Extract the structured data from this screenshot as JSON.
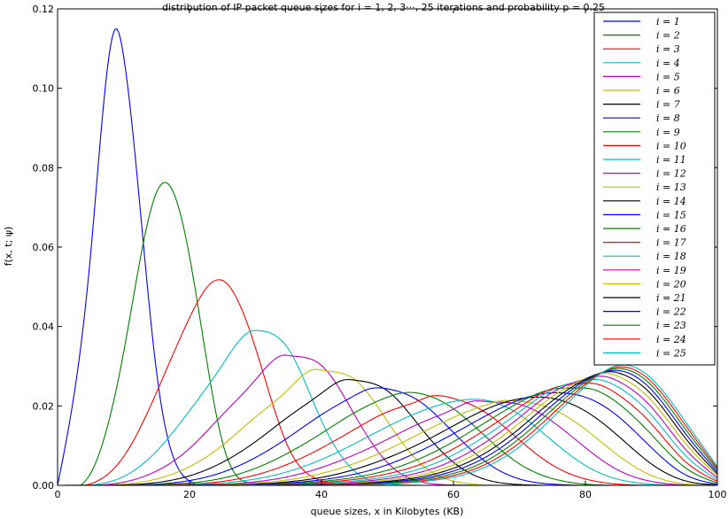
{
  "chart_data": {
    "type": "line",
    "title": "distribution of IP packet queue sizes  for i = 1, 2, 3···, 25 iterations and probability p = 0.25",
    "xlabel": "queue sizes, x in Kilobytes (KB)",
    "ylabel": "f(x, t; ψ)",
    "xlim": [
      0,
      100
    ],
    "ylim": [
      0,
      0.12
    ],
    "xticks": [
      "0",
      "20",
      "40",
      "60",
      "80",
      "100"
    ],
    "yticks": [
      "0.00",
      "0.02",
      "0.04",
      "0.06",
      "0.08",
      "0.10",
      "0.12"
    ],
    "grid": false,
    "legend_position": "top-right",
    "x": [
      0,
      5,
      10,
      15,
      20,
      25,
      30,
      35,
      40,
      45,
      50,
      55,
      60,
      65,
      70,
      75,
      80,
      85,
      90,
      95,
      100
    ],
    "series": [
      {
        "name": "i = 1",
        "color": "#0000ff",
        "peak_x": 8.9,
        "peak_y": 0.115,
        "values": [
          0,
          0.058,
          0.1082,
          0.0286,
          0.0011,
          0,
          0,
          0,
          0,
          0,
          0,
          0,
          0,
          0,
          0,
          0,
          0,
          0,
          0,
          0,
          0
        ]
      },
      {
        "name": "i = 2",
        "color": "#008000",
        "peak_x": 16.7,
        "peak_y": 0.076,
        "values": [
          0,
          0.003,
          0.0334,
          0.0738,
          0.0576,
          0.0108,
          0.0006,
          0,
          0,
          0,
          0,
          0,
          0,
          0,
          0,
          0,
          0,
          0,
          0,
          0,
          0
        ]
      },
      {
        "name": "i = 3",
        "color": "#ff0000",
        "peak_x": 24.4,
        "peak_y": 0.0518,
        "values": [
          0,
          0.0004,
          0.0072,
          0.0234,
          0.0422,
          0.0516,
          0.0346,
          0.0095,
          0.0012,
          0,
          0,
          0,
          0,
          0,
          0,
          0,
          0,
          0,
          0,
          0,
          0
        ]
      },
      {
        "name": "i = 4",
        "color": "#00bfbf",
        "peak_x": 29.8,
        "peak_y": 0.039,
        "values": [
          0,
          0.0001,
          0.0022,
          0.0086,
          0.0188,
          0.0304,
          0.039,
          0.0343,
          0.0163,
          0.0036,
          0.0004,
          0,
          0,
          0,
          0,
          0,
          0,
          0,
          0,
          0,
          0
        ]
      },
      {
        "name": "i = 5",
        "color": "#bf00bf",
        "peak_x": 34.5,
        "peak_y": 0.0328,
        "values": [
          0,
          0,
          0.0008,
          0.0036,
          0.0093,
          0.0178,
          0.0266,
          0.0327,
          0.0302,
          0.0178,
          0.0057,
          0.0009,
          0.0001,
          0,
          0,
          0,
          0,
          0,
          0,
          0,
          0
        ]
      },
      {
        "name": "i = 6",
        "color": "#bfbf00",
        "peak_x": 39.0,
        "peak_y": 0.0292,
        "values": [
          0,
          0,
          0.0003,
          0.0016,
          0.0047,
          0.0101,
          0.0172,
          0.0242,
          0.029,
          0.0267,
          0.0161,
          0.0055,
          0.0011,
          0.0001,
          0,
          0,
          0,
          0,
          0,
          0,
          0
        ]
      },
      {
        "name": "i = 7",
        "color": "#000000",
        "peak_x": 43.6,
        "peak_y": 0.0266,
        "values": [
          0,
          0,
          0.0001,
          0.0007,
          0.0024,
          0.0058,
          0.011,
          0.0173,
          0.0232,
          0.0265,
          0.0238,
          0.0146,
          0.0058,
          0.0014,
          0.0002,
          0,
          0,
          0,
          0,
          0,
          0
        ]
      },
      {
        "name": "i = 8",
        "color": "#0000ff",
        "peak_x": 47.5,
        "peak_y": 0.0244,
        "values": [
          0,
          0,
          0,
          0.0003,
          0.0012,
          0.0033,
          0.007,
          0.0121,
          0.0178,
          0.0226,
          0.0243,
          0.021,
          0.0133,
          0.0058,
          0.0016,
          0.0003,
          0,
          0,
          0,
          0,
          0
        ]
      },
      {
        "name": "i = 9",
        "color": "#008000",
        "peak_x": 52,
        "peak_y": 0.0232,
        "values": [
          0,
          0,
          0,
          0.0002,
          0.0006,
          0.0018,
          0.0043,
          0.0082,
          0.0131,
          0.0183,
          0.0222,
          0.0231,
          0.0193,
          0.0121,
          0.0054,
          0.0017,
          0.0003,
          0,
          0,
          0,
          0
        ]
      },
      {
        "name": "i = 10",
        "color": "#ff0000",
        "peak_x": 56,
        "peak_y": 0.0222,
        "values": [
          0,
          0,
          0,
          0.0001,
          0.0003,
          0.001,
          0.0026,
          0.0054,
          0.0094,
          0.0141,
          0.0185,
          0.0215,
          0.0219,
          0.0182,
          0.0114,
          0.0051,
          0.0016,
          0.0003,
          0,
          0,
          0
        ]
      },
      {
        "name": "i = 11",
        "color": "#00bfbf",
        "peak_x": 60,
        "peak_y": 0.0215,
        "values": [
          0,
          0,
          0,
          0,
          0.0002,
          0.0006,
          0.0016,
          0.0035,
          0.0065,
          0.0105,
          0.0148,
          0.0186,
          0.0211,
          0.0214,
          0.0178,
          0.0112,
          0.005,
          0.0015,
          0.0003,
          0,
          0
        ]
      },
      {
        "name": "i = 12",
        "color": "#bf00bf",
        "peak_x": 63,
        "peak_y": 0.0212,
        "values": [
          0,
          0,
          0,
          0,
          0.0001,
          0.0003,
          0.0009,
          0.0022,
          0.0045,
          0.0077,
          0.0116,
          0.0157,
          0.0192,
          0.0211,
          0.0204,
          0.0161,
          0.0095,
          0.0038,
          0.001,
          0.0001,
          0
        ]
      },
      {
        "name": "i = 13",
        "color": "#bfbf00",
        "peak_x": 67,
        "peak_y": 0.0212,
        "values": [
          0,
          0,
          0,
          0,
          0,
          0.0002,
          0.0006,
          0.0014,
          0.003,
          0.0055,
          0.009,
          0.0131,
          0.0171,
          0.0203,
          0.0212,
          0.0192,
          0.0141,
          0.0075,
          0.0025,
          0.0004,
          0
        ]
      },
      {
        "name": "i = 14",
        "color": "#000000",
        "peak_x": 72,
        "peak_y": 0.0222,
        "values": [
          0,
          0,
          0,
          0,
          0,
          0.0001,
          0.0003,
          0.0009,
          0.002,
          0.004,
          0.0069,
          0.0106,
          0.015,
          0.0192,
          0.0218,
          0.0219,
          0.0187,
          0.0124,
          0.0054,
          0.0012,
          0.0001
        ]
      },
      {
        "name": "i = 15",
        "color": "#0000ff",
        "peak_x": 76,
        "peak_y": 0.0233,
        "values": [
          0,
          0,
          0,
          0,
          0,
          0.0001,
          0.0002,
          0.0006,
          0.0014,
          0.0028,
          0.0052,
          0.0087,
          0.013,
          0.0176,
          0.0215,
          0.0233,
          0.0222,
          0.0173,
          0.0095,
          0.0028,
          0.0003
        ]
      },
      {
        "name": "i = 16",
        "color": "#008000",
        "peak_x": 79,
        "peak_y": 0.0245,
        "values": [
          0,
          0,
          0,
          0,
          0,
          0,
          0.0001,
          0.0004,
          0.001,
          0.002,
          0.0038,
          0.0068,
          0.011,
          0.016,
          0.0209,
          0.0242,
          0.0245,
          0.0206,
          0.0128,
          0.0046,
          0.0006
        ]
      },
      {
        "name": "i = 17",
        "color": "#ff0000",
        "peak_x": 81,
        "peak_y": 0.0257,
        "values": [
          0,
          0,
          0,
          0,
          0,
          0,
          0.0001,
          0.0003,
          0.0007,
          0.0015,
          0.0029,
          0.0053,
          0.0092,
          0.0142,
          0.0197,
          0.0244,
          0.0257,
          0.0228,
          0.0155,
          0.0062,
          0.001
        ]
      },
      {
        "name": "i = 18",
        "color": "#00bfbf",
        "peak_x": 82,
        "peak_y": 0.0266,
        "values": [
          0,
          0,
          0,
          0,
          0,
          0,
          0.0001,
          0.0002,
          0.0005,
          0.0011,
          0.0022,
          0.0042,
          0.0077,
          0.0126,
          0.0185,
          0.0241,
          0.0264,
          0.0247,
          0.0177,
          0.0078,
          0.0014
        ]
      },
      {
        "name": "i = 19",
        "color": "#bf00bf",
        "peak_x": 83,
        "peak_y": 0.0274,
        "values": [
          0,
          0,
          0,
          0,
          0,
          0,
          0,
          0.0001,
          0.0003,
          0.0008,
          0.0017,
          0.0033,
          0.0063,
          0.011,
          0.0171,
          0.0234,
          0.0268,
          0.0262,
          0.0197,
          0.0094,
          0.0019
        ]
      },
      {
        "name": "i = 20",
        "color": "#bfbf00",
        "peak_x": 84,
        "peak_y": 0.028,
        "values": [
          0,
          0,
          0,
          0,
          0,
          0,
          0,
          0.0001,
          0.0002,
          0.0006,
          0.0013,
          0.0026,
          0.0052,
          0.0096,
          0.0157,
          0.0224,
          0.0269,
          0.0274,
          0.0214,
          0.0109,
          0.0024
        ]
      },
      {
        "name": "i = 21",
        "color": "#000000",
        "peak_x": 84.5,
        "peak_y": 0.0285,
        "values": [
          0,
          0,
          0,
          0,
          0,
          0,
          0,
          0.0001,
          0.0002,
          0.0004,
          0.001,
          0.0021,
          0.0043,
          0.0083,
          0.0143,
          0.0213,
          0.0267,
          0.0283,
          0.0229,
          0.0122,
          0.0029
        ]
      },
      {
        "name": "i = 22",
        "color": "#0000ff",
        "peak_x": 85,
        "peak_y": 0.029,
        "values": [
          0,
          0,
          0,
          0,
          0,
          0,
          0,
          0,
          0.0001,
          0.0003,
          0.0008,
          0.0017,
          0.0036,
          0.0072,
          0.013,
          0.0202,
          0.0264,
          0.0289,
          0.0241,
          0.0134,
          0.0034
        ]
      },
      {
        "name": "i = 23",
        "color": "#008000",
        "peak_x": 85,
        "peak_y": 0.0295,
        "values": [
          0,
          0,
          0,
          0,
          0,
          0,
          0,
          0,
          0.0001,
          0.0002,
          0.0006,
          0.0014,
          0.003,
          0.0062,
          0.0118,
          0.0191,
          0.026,
          0.0294,
          0.0252,
          0.0145,
          0.0039
        ]
      },
      {
        "name": "i = 24",
        "color": "#ff0000",
        "peak_x": 85,
        "peak_y": 0.0299,
        "values": [
          0,
          0,
          0,
          0,
          0,
          0,
          0,
          0,
          0.0001,
          0.0002,
          0.0004,
          0.0011,
          0.0025,
          0.0054,
          0.0107,
          0.018,
          0.0255,
          0.0298,
          0.0261,
          0.0155,
          0.0043
        ]
      },
      {
        "name": "i = 25",
        "color": "#00bfbf",
        "peak_x": 85.5,
        "peak_y": 0.0303,
        "values": [
          0,
          0,
          0,
          0,
          0,
          0,
          0,
          0,
          0,
          0.0001,
          0.0003,
          0.0009,
          0.0021,
          0.0047,
          0.0097,
          0.017,
          0.025,
          0.0302,
          0.0269,
          0.0164,
          0.0047
        ]
      }
    ]
  }
}
